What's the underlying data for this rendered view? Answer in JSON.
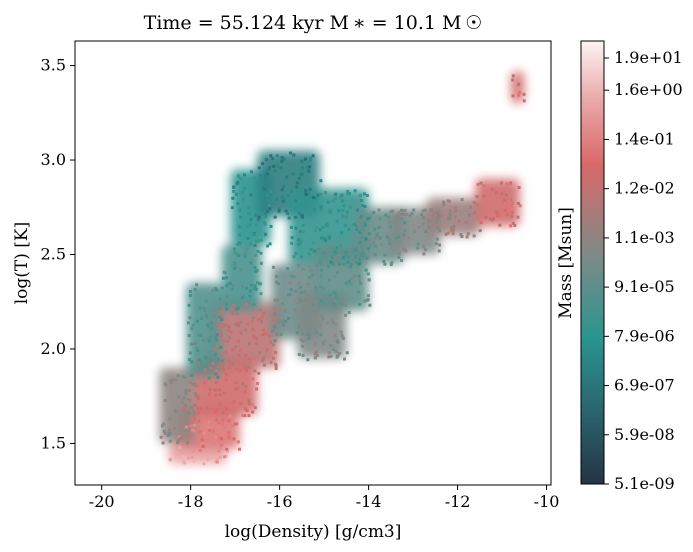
{
  "chart_data": {
    "type": "heatmap",
    "title": "Time = 55.124 kyr   M ∗ = 10.1 M ☉",
    "xlabel": "log(Density) [g/cm3]",
    "ylabel": "log(T) [K]",
    "xlim": [
      -20.6,
      -9.9
    ],
    "ylim": [
      1.28,
      3.63
    ],
    "x_ticks": [
      -20,
      -18,
      -16,
      -14,
      -12,
      -10
    ],
    "y_ticks": [
      1.5,
      2.0,
      2.5,
      3.0,
      3.5
    ],
    "grid": false,
    "colorbar": {
      "label": "Mass [Msun]",
      "scale": "log",
      "range": [
        "5.1e-09",
        "1.9e+01"
      ],
      "tick_labels": [
        "5.1e-09",
        "5.9e-08",
        "6.9e-07",
        "7.9e-06",
        "9.1e-05",
        "1.1e-03",
        "1.2e-02",
        "1.4e-01",
        "1.6e+00",
        "1.9e+01"
      ],
      "colors": [
        "#243447",
        "#2b6670",
        "#2a9590",
        "#7f8a87",
        "#d96868",
        "#eaaaaa",
        "#fdf4f4"
      ]
    },
    "regions": [
      {
        "x": [
          -18.5,
          -17.2
        ],
        "y": [
          1.39,
          1.5
        ],
        "level": 0.85
      },
      {
        "x": [
          -18.3,
          -16.9
        ],
        "y": [
          1.47,
          1.7
        ],
        "level": 0.75
      },
      {
        "x": [
          -18.7,
          -17.9
        ],
        "y": [
          1.5,
          1.9
        ],
        "level": 0.55
      },
      {
        "x": [
          -17.9,
          -16.5
        ],
        "y": [
          1.65,
          1.95
        ],
        "level": 0.7
      },
      {
        "x": [
          -17.5,
          -16.0
        ],
        "y": [
          1.9,
          2.25
        ],
        "level": 0.65
      },
      {
        "x": [
          -18.1,
          -17.3
        ],
        "y": [
          1.85,
          2.35
        ],
        "level": 0.42
      },
      {
        "x": [
          -17.3,
          -16.4
        ],
        "y": [
          2.2,
          2.55
        ],
        "level": 0.4
      },
      {
        "x": [
          -17.1,
          -16.2
        ],
        "y": [
          2.55,
          2.95
        ],
        "level": 0.32
      },
      {
        "x": [
          -16.5,
          -15.1
        ],
        "y": [
          2.7,
          3.05
        ],
        "level": 0.25
      },
      {
        "x": [
          -15.8,
          -14.0
        ],
        "y": [
          2.45,
          2.85
        ],
        "level": 0.35
      },
      {
        "x": [
          -16.2,
          -15.1
        ],
        "y": [
          2.05,
          2.45
        ],
        "level": 0.48
      },
      {
        "x": [
          -15.6,
          -14.5
        ],
        "y": [
          1.95,
          2.3
        ],
        "level": 0.52
      },
      {
        "x": [
          -15.2,
          -14.0
        ],
        "y": [
          2.2,
          2.55
        ],
        "level": 0.45
      },
      {
        "x": [
          -14.3,
          -13.2
        ],
        "y": [
          2.45,
          2.75
        ],
        "level": 0.47
      },
      {
        "x": [
          -13.5,
          -12.4
        ],
        "y": [
          2.5,
          2.75
        ],
        "level": 0.52
      },
      {
        "x": [
          -12.7,
          -11.5
        ],
        "y": [
          2.6,
          2.8
        ],
        "level": 0.58
      },
      {
        "x": [
          -11.6,
          -10.6
        ],
        "y": [
          2.65,
          2.9
        ],
        "level": 0.7
      },
      {
        "x": [
          -10.8,
          -10.5
        ],
        "y": [
          3.3,
          3.47
        ],
        "level": 0.7
      }
    ]
  }
}
